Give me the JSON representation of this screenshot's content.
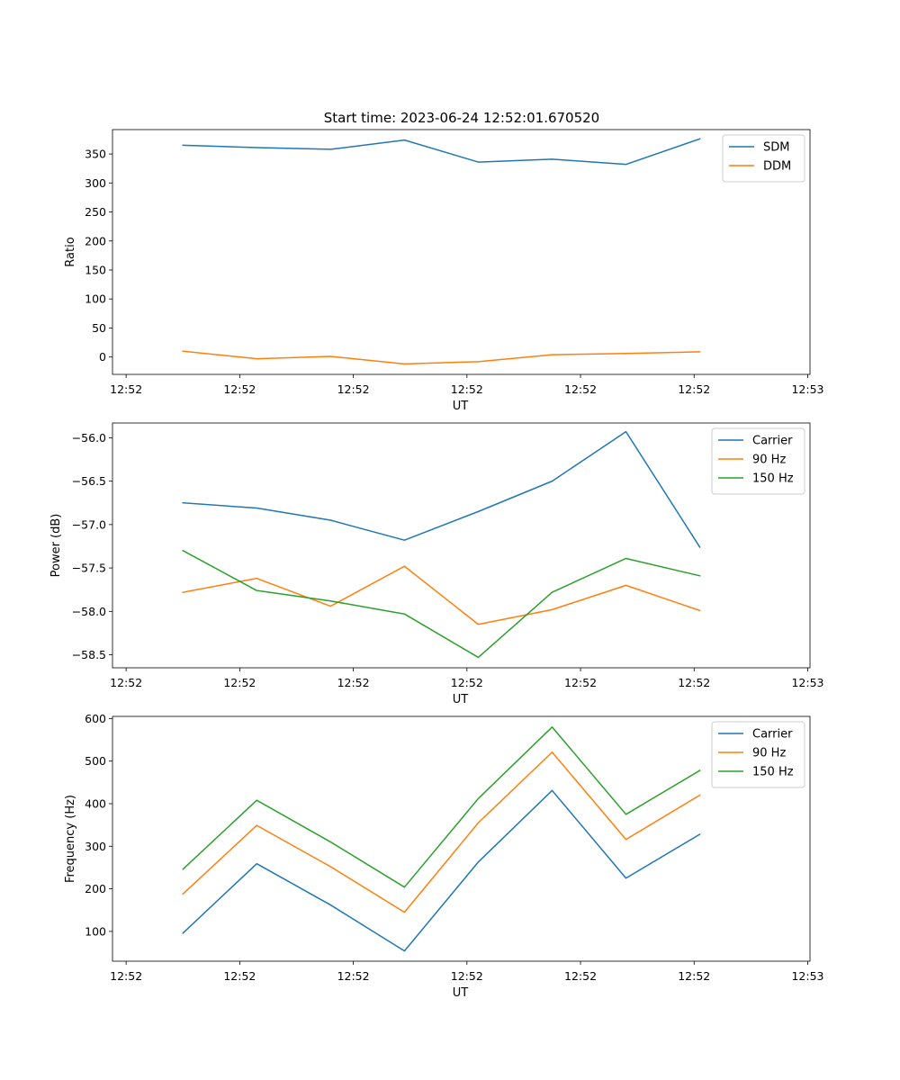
{
  "figure": {
    "title": "Start time: 2023-06-24 12:52:01.670520"
  },
  "chart_data": [
    {
      "type": "line",
      "title": "Start time: 2023-06-24 12:52:01.670520",
      "xlabel": "UT",
      "ylabel": "Ratio",
      "x_tick_labels": [
        "12:52",
        "12:52",
        "12:52",
        "12:52",
        "12:52",
        "12:52",
        "12:53"
      ],
      "x_tick_positions": [
        0,
        1,
        2,
        3,
        4,
        5,
        6
      ],
      "x": [
        0.5,
        1.15,
        1.8,
        2.45,
        3.1,
        3.75,
        4.4,
        5.05
      ],
      "xlim": [
        -0.12,
        6.02
      ],
      "ylim": [
        -30,
        392
      ],
      "y_ticks": [
        0,
        50,
        100,
        150,
        200,
        250,
        300,
        350
      ],
      "legend_position": "top-right",
      "grid": false,
      "series": [
        {
          "name": "SDM",
          "color": "#1f77b4",
          "values": [
            365,
            361,
            358,
            374,
            336,
            341,
            332,
            376
          ]
        },
        {
          "name": "DDM",
          "color": "#ff7f0e",
          "values": [
            10,
            -3,
            1,
            -12,
            -8,
            4,
            6,
            9
          ]
        }
      ]
    },
    {
      "type": "line",
      "xlabel": "UT",
      "ylabel": "Power (dB)",
      "x_tick_labels": [
        "12:52",
        "12:52",
        "12:52",
        "12:52",
        "12:52",
        "12:52",
        "12:53"
      ],
      "x_tick_positions": [
        0,
        1,
        2,
        3,
        4,
        5,
        6
      ],
      "x": [
        0.5,
        1.15,
        1.8,
        2.45,
        3.1,
        3.75,
        4.4,
        5.05
      ],
      "xlim": [
        -0.12,
        6.02
      ],
      "ylim": [
        -58.65,
        -55.83
      ],
      "y_ticks": [
        -58.5,
        -58.0,
        -57.5,
        -57.0,
        -56.5,
        -56.0
      ],
      "y_tick_labels": [
        "−58.5",
        "−58.0",
        "−57.5",
        "−57.0",
        "−56.5",
        "−56.0"
      ],
      "legend_position": "top-right",
      "grid": false,
      "series": [
        {
          "name": "Carrier",
          "color": "#1f77b4",
          "values": [
            -56.75,
            -56.81,
            -56.95,
            -57.18,
            -56.85,
            -56.5,
            -55.93,
            -57.26
          ]
        },
        {
          "name": "90 Hz",
          "color": "#ff7f0e",
          "values": [
            -57.78,
            -57.62,
            -57.94,
            -57.48,
            -58.15,
            -57.98,
            -57.7,
            -57.99
          ]
        },
        {
          "name": "150 Hz",
          "color": "#2ca02c",
          "values": [
            -57.3,
            -57.76,
            -57.88,
            -58.03,
            -58.53,
            -57.78,
            -57.39,
            -57.59
          ]
        }
      ]
    },
    {
      "type": "line",
      "xlabel": "UT",
      "ylabel": "Frequency (Hz)",
      "x_tick_labels": [
        "12:52",
        "12:52",
        "12:52",
        "12:52",
        "12:52",
        "12:52",
        "12:53"
      ],
      "x_tick_positions": [
        0,
        1,
        2,
        3,
        4,
        5,
        6
      ],
      "x": [
        0.5,
        1.15,
        1.8,
        2.45,
        3.1,
        3.75,
        4.4,
        5.05
      ],
      "xlim": [
        -0.12,
        6.02
      ],
      "ylim": [
        30,
        605
      ],
      "y_ticks": [
        100,
        200,
        300,
        400,
        500,
        600
      ],
      "legend_position": "top-right",
      "grid": false,
      "series": [
        {
          "name": "Carrier",
          "color": "#1f77b4",
          "values": [
            96,
            259,
            162,
            54,
            263,
            431,
            225,
            328
          ]
        },
        {
          "name": "90 Hz",
          "color": "#ff7f0e",
          "values": [
            188,
            349,
            252,
            145,
            355,
            521,
            316,
            420
          ]
        },
        {
          "name": "150 Hz",
          "color": "#2ca02c",
          "values": [
            246,
            408,
            310,
            204,
            412,
            580,
            375,
            478
          ]
        }
      ]
    }
  ]
}
